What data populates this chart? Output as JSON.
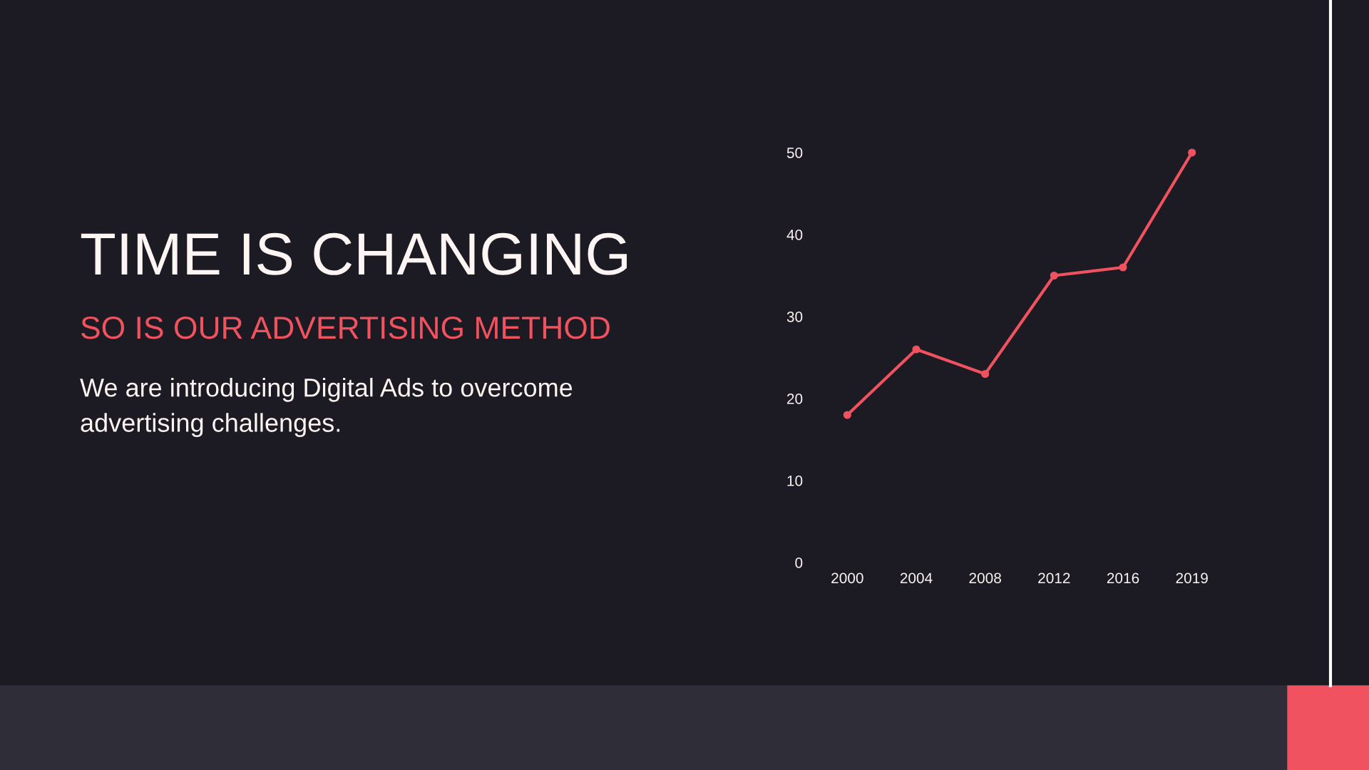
{
  "chart_data": {
    "type": "line",
    "title": "TIME IS CHANGING",
    "subtitle": "SO IS OUR ADVERTISING METHOD",
    "annotations": [
      "We are introducing Digital Ads to overcome advertising challenges."
    ],
    "categories": [
      "2000",
      "2004",
      "2008",
      "2012",
      "2016",
      "2019"
    ],
    "series": [
      {
        "color": "#f0525f",
        "values": [
          18,
          26,
          23,
          35,
          36,
          50
        ]
      }
    ],
    "marker": "circle",
    "line_style": "solid",
    "ylim": [
      0,
      50
    ],
    "yticks": [
      0,
      10,
      20,
      30,
      40,
      50
    ],
    "grid": false
  }
}
